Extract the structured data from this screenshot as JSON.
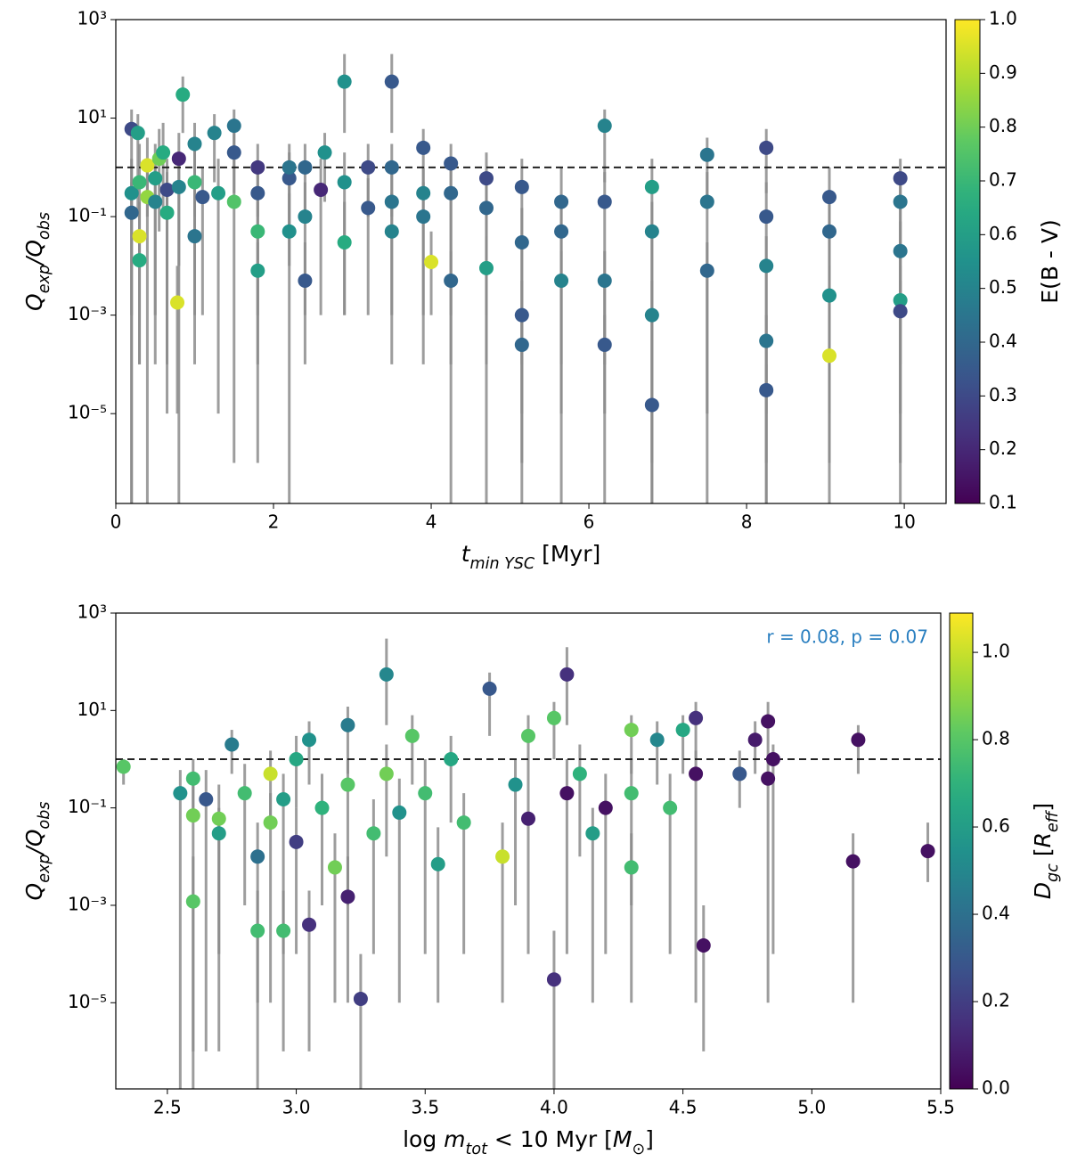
{
  "chart_data": [
    {
      "type": "scatter",
      "log_y": true,
      "colormap": "viridis",
      "hline": 1,
      "errorbar_color": "#8c8c8c",
      "xlabel": [
        {
          "text": "t",
          "italic": true
        },
        {
          "text": "min YSC",
          "sub": true,
          "italic": true
        },
        {
          "text": " [Myr]"
        }
      ],
      "ylabel": [
        {
          "text": "Q",
          "italic": true
        },
        {
          "text": "exp",
          "sub": true,
          "italic": true
        },
        {
          "text": "/",
          "italic": true
        },
        {
          "text": "Q",
          "italic": true
        },
        {
          "text": "obs",
          "sub": true,
          "italic": true
        }
      ],
      "xlim": [
        0,
        10.53
      ],
      "ylim": [
        1.5e-07,
        1000
      ],
      "xticks": [
        0,
        2,
        4,
        6,
        8,
        10
      ],
      "yticks": [
        {
          "value": 1000,
          "label": "10³"
        },
        {
          "value": 10,
          "label": "10¹"
        },
        {
          "value": 0.1,
          "label": "10⁻¹"
        },
        {
          "value": 0.001,
          "label": "10⁻³"
        },
        {
          "value": 1e-05,
          "label": "10⁻⁵"
        }
      ],
      "colorbar": {
        "label": [
          {
            "text": "E(B - V)"
          }
        ],
        "lim": [
          0.1,
          1.0
        ],
        "ticks": [
          0.1,
          0.2,
          0.3,
          0.4,
          0.5,
          0.6,
          0.7,
          0.8,
          0.9,
          {
            "value": 1,
            "label": "1.0"
          }
        ]
      },
      "x": [
        0.2,
        0.2,
        0.2,
        0.3,
        0.3,
        0.3,
        0.28,
        0.4,
        0.4,
        0.5,
        0.55,
        0.5,
        0.6,
        0.65,
        0.65,
        0.78,
        0.8,
        0.85,
        0.8,
        1.0,
        1.0,
        1.0,
        1.1,
        1.25,
        1.3,
        1.5,
        1.5,
        1.5,
        1.8,
        1.8,
        1.8,
        1.8,
        2.2,
        2.2,
        2.2,
        2.4,
        2.4,
        2.4,
        2.65,
        2.6,
        2.9,
        2.9,
        2.9,
        3.2,
        3.2,
        3.5,
        3.5,
        3.5,
        3.5,
        3.9,
        4.0,
        3.9,
        3.9,
        4.25,
        4.25,
        4.25,
        4.7,
        4.7,
        4.7,
        5.15,
        5.15,
        5.15,
        5.15,
        5.65,
        5.65,
        5.65,
        6.2,
        6.2,
        6.2,
        6.2,
        6.8,
        6.8,
        6.8,
        6.8,
        7.5,
        7.5,
        7.5,
        8.25,
        8.25,
        8.25,
        8.25,
        8.25,
        9.05,
        9.05,
        9.05,
        9.05,
        9.95,
        9.95,
        9.95,
        9.95,
        9.95
      ],
      "y": [
        6,
        0.3,
        0.12,
        0.04,
        0.013,
        0.5,
        5,
        1.1,
        0.25,
        0.6,
        1.5,
        0.2,
        2,
        0.35,
        0.12,
        0.0018,
        1.5,
        30,
        0.4,
        0.5,
        3,
        0.04,
        0.25,
        5,
        0.3,
        7,
        2,
        0.2,
        1,
        0.008,
        0.05,
        0.3,
        0.05,
        0.6,
        1,
        1,
        0.005,
        0.1,
        2,
        0.35,
        55,
        0.03,
        0.5,
        1,
        0.15,
        55,
        1,
        0.2,
        0.05,
        2.5,
        0.012,
        0.3,
        0.1,
        1.2,
        0.005,
        0.3,
        0.6,
        0.009,
        0.15,
        0.4,
        0.001,
        0.00025,
        0.03,
        0.2,
        0.005,
        0.05,
        7,
        0.00025,
        0.2,
        0.005,
        0.4,
        0.001,
        1.5e-05,
        0.05,
        1.8,
        0.2,
        0.008,
        2.5,
        0.1,
        3e-05,
        0.0003,
        0.01,
        0.25,
        0.00015,
        0.0025,
        0.05,
        0.6,
        0.002,
        0.0012,
        0.02,
        0.2
      ],
      "c": [
        0.3,
        0.55,
        0.4,
        0.95,
        0.65,
        0.7,
        0.6,
        0.95,
        0.85,
        0.6,
        0.8,
        0.5,
        0.65,
        0.3,
        0.65,
        0.95,
        0.2,
        0.65,
        0.5,
        0.7,
        0.5,
        0.45,
        0.35,
        0.5,
        0.6,
        0.45,
        0.35,
        0.75,
        0.25,
        0.6,
        0.7,
        0.35,
        0.55,
        0.35,
        0.45,
        0.4,
        0.35,
        0.5,
        0.55,
        0.2,
        0.55,
        0.65,
        0.55,
        0.3,
        0.35,
        0.35,
        0.4,
        0.45,
        0.5,
        0.35,
        0.95,
        0.5,
        0.45,
        0.35,
        0.4,
        0.4,
        0.3,
        0.6,
        0.4,
        0.35,
        0.35,
        0.4,
        0.4,
        0.4,
        0.5,
        0.4,
        0.5,
        0.35,
        0.35,
        0.45,
        0.6,
        0.5,
        0.35,
        0.5,
        0.45,
        0.45,
        0.4,
        0.3,
        0.35,
        0.35,
        0.45,
        0.5,
        0.35,
        0.95,
        0.55,
        0.4,
        0.3,
        0.6,
        0.3,
        0.45,
        0.45
      ],
      "yerr_low": [
        1e-07,
        0.001,
        1e-07,
        0.0001,
        0.0001,
        0.01,
        0.1,
        0.1,
        1e-07,
        0.001,
        0.05,
        0.0001,
        0.1,
        1e-05,
        0.0001,
        1e-05,
        0.01,
        5,
        1e-07,
        0.0001,
        0.1,
        0.001,
        0.001,
        0.5,
        1e-05,
        1,
        0.3,
        1e-06,
        0.1,
        1e-06,
        0.001,
        0.0001,
        1e-07,
        0.01,
        0.05,
        0.1,
        0.0001,
        0.001,
        0.2,
        0.001,
        5,
        0.001,
        0.001,
        0.1,
        0.001,
        5,
        0.1,
        0.0001,
        0.001,
        0.3,
        0.001,
        0.0001,
        0.001,
        1e-07,
        0.0001,
        0.001,
        1e-07,
        0.0001,
        0.001,
        1e-07,
        1e-05,
        1e-06,
        0.0001,
        1e-07,
        1e-05,
        0.0001,
        0.5,
        1e-07,
        0.0001,
        1e-05,
        1e-07,
        1e-06,
        1e-07,
        0.0001,
        0.2,
        1e-07,
        1e-05,
        0.3,
        1e-07,
        1e-07,
        1e-06,
        1e-05,
        1e-07,
        1e-06,
        1e-05,
        0.0001,
        1e-07,
        1e-05,
        1e-06,
        0.0001,
        0.001
      ],
      "yerr_high": [
        15,
        1.5,
        0.5,
        0.2,
        0.05,
        3,
        12,
        4,
        1,
        3,
        6,
        1,
        8,
        1.5,
        0.8,
        0.01,
        5,
        70,
        2,
        3,
        8,
        0.2,
        1,
        12,
        1.5,
        15,
        5,
        1,
        3,
        0.03,
        0.2,
        1,
        0.3,
        2,
        3,
        3,
        0.03,
        0.5,
        5,
        1.5,
        200,
        0.2,
        2,
        3,
        0.6,
        200,
        3,
        1,
        0.3,
        6,
        0.05,
        1,
        0.5,
        3,
        0.02,
        1,
        2,
        0.04,
        0.6,
        1.5,
        0.005,
        0.001,
        0.15,
        1,
        0.02,
        0.2,
        15,
        0.001,
        0.8,
        0.02,
        1.5,
        0.005,
        0.0001,
        0.2,
        4,
        0.8,
        0.03,
        6,
        0.5,
        0.0001,
        0.001,
        0.04,
        1,
        0.001,
        0.01,
        0.2,
        1.5,
        0.01,
        0.005,
        0.08,
        0.6
      ]
    },
    {
      "type": "scatter",
      "log_y": true,
      "colormap": "viridis",
      "hline": 1,
      "errorbar_color": "#8c8c8c",
      "annotation": "r = 0.08, p = 0.07",
      "annotation_color": "#2a7fc0",
      "annotation_corner": "upper right",
      "xlabel": [
        {
          "text": "log "
        },
        {
          "text": "m",
          "italic": true
        },
        {
          "text": "tot",
          "sub": true,
          "italic": true
        },
        {
          "text": " < 10 Myr ["
        },
        {
          "text": "M",
          "italic": true
        },
        {
          "text": "⊙",
          "sub": true
        },
        {
          "text": "]"
        }
      ],
      "ylabel": [
        {
          "text": "Q",
          "italic": true
        },
        {
          "text": "exp",
          "sub": true,
          "italic": true
        },
        {
          "text": "/",
          "italic": true
        },
        {
          "text": "Q",
          "italic": true
        },
        {
          "text": "obs",
          "sub": true,
          "italic": true
        }
      ],
      "xlim": [
        2.3,
        5.5
      ],
      "ylim": [
        1.7e-07,
        1000
      ],
      "xticks": [
        2.5,
        {
          "value": 3,
          "label": "3.0"
        },
        3.5,
        {
          "value": 4,
          "label": "4.0"
        },
        4.5,
        {
          "value": 5,
          "label": "5.0"
        },
        5.5
      ],
      "yticks": [
        {
          "value": 1000,
          "label": "10³"
        },
        {
          "value": 10,
          "label": "10¹"
        },
        {
          "value": 0.1,
          "label": "10⁻¹"
        },
        {
          "value": 0.001,
          "label": "10⁻³"
        },
        {
          "value": 1e-05,
          "label": "10⁻⁵"
        }
      ],
      "colorbar": {
        "label": [
          {
            "text": "D",
            "italic": true
          },
          {
            "text": "gc",
            "sub": true,
            "italic": true
          },
          {
            "text": " ["
          },
          {
            "text": "R",
            "italic": true
          },
          {
            "text": "eff",
            "sub": true,
            "italic": true
          },
          {
            "text": "]"
          }
        ],
        "lim": [
          0,
          1.09
        ],
        "ticks": [
          {
            "value": 0,
            "label": "0.0"
          },
          0.2,
          0.4,
          0.6,
          0.8,
          {
            "value": 1,
            "label": "1.0"
          }
        ]
      },
      "x": [
        2.33,
        2.55,
        2.6,
        2.6,
        2.6,
        2.65,
        2.7,
        2.7,
        2.75,
        2.8,
        2.85,
        2.85,
        2.9,
        2.9,
        2.95,
        2.95,
        3.0,
        3.0,
        3.05,
        3.05,
        3.1,
        3.15,
        3.2,
        3.2,
        3.2,
        3.25,
        3.3,
        3.35,
        3.35,
        3.4,
        3.45,
        3.5,
        3.55,
        3.6,
        3.65,
        3.75,
        3.8,
        3.85,
        3.9,
        3.9,
        4.0,
        4.0,
        4.05,
        4.05,
        4.1,
        4.15,
        4.2,
        4.3,
        4.3,
        4.3,
        4.4,
        4.45,
        4.5,
        4.55,
        4.55,
        4.58,
        4.72,
        4.78,
        4.83,
        4.83,
        4.85,
        5.16,
        5.18,
        5.45
      ],
      "y": [
        0.7,
        0.2,
        0.4,
        0.07,
        0.0012,
        0.15,
        0.03,
        0.06,
        2,
        0.2,
        0.01,
        0.0003,
        0.5,
        0.05,
        0.15,
        0.0003,
        1,
        0.02,
        2.5,
        0.0004,
        0.1,
        0.006,
        5,
        0.3,
        0.0015,
        1.2e-05,
        0.03,
        55,
        0.5,
        0.08,
        3,
        0.2,
        0.007,
        1,
        0.05,
        28,
        0.01,
        0.3,
        3,
        0.06,
        3e-05,
        7,
        55,
        0.2,
        0.5,
        0.03,
        0.1,
        4,
        0.006,
        0.2,
        2.5,
        0.1,
        4,
        7,
        0.5,
        0.00015,
        0.5,
        2.5,
        6,
        0.4,
        1,
        0.008,
        2.5,
        0.013
      ],
      "c": [
        0.8,
        0.55,
        0.75,
        0.85,
        0.8,
        0.3,
        0.6,
        0.85,
        0.45,
        0.75,
        0.4,
        0.75,
        1.0,
        0.85,
        0.6,
        0.75,
        0.65,
        0.2,
        0.55,
        0.15,
        0.7,
        0.85,
        0.45,
        0.8,
        0.1,
        0.2,
        0.75,
        0.5,
        0.85,
        0.55,
        0.8,
        0.75,
        0.6,
        0.65,
        0.75,
        0.3,
        1.0,
        0.55,
        0.8,
        0.1,
        0.15,
        0.8,
        0.15,
        0.05,
        0.7,
        0.6,
        0.05,
        0.85,
        0.75,
        0.75,
        0.5,
        0.75,
        0.65,
        0.15,
        0.05,
        0.05,
        0.3,
        0.08,
        0.05,
        0.05,
        0.05,
        0.05,
        0.05,
        0.05
      ],
      "yerr_low": [
        0.3,
        1e-07,
        0.05,
        1e-06,
        1e-07,
        1e-06,
        0.0001,
        1e-06,
        0.5,
        0.001,
        1e-05,
        1e-07,
        0.05,
        1e-05,
        0.0001,
        1e-06,
        0.1,
        0.0001,
        0.3,
        1e-06,
        0.001,
        1e-05,
        0.5,
        0.001,
        1e-05,
        1e-07,
        0.0001,
        5,
        0.01,
        1e-05,
        0.3,
        0.0001,
        1e-05,
        0.05,
        0.0001,
        3,
        1e-05,
        0.001,
        0.3,
        0.0001,
        1e-07,
        1,
        5,
        0.0001,
        0.01,
        1e-05,
        0.0001,
        0.5,
        1e-05,
        0.001,
        0.3,
        0.0001,
        0.5,
        1,
        1e-05,
        1e-06,
        0.1,
        0.5,
        1,
        1e-05,
        0.0001,
        1e-05,
        0.5,
        0.003
      ],
      "yerr_high": [
        1,
        0.6,
        1,
        0.3,
        0.01,
        0.6,
        0.1,
        0.3,
        4,
        0.8,
        0.05,
        0.002,
        1.5,
        0.2,
        0.5,
        0.002,
        3,
        0.1,
        6,
        0.002,
        0.5,
        0.03,
        12,
        1,
        0.01,
        0.0001,
        0.15,
        300,
        2,
        0.4,
        8,
        1,
        0.04,
        3,
        0.2,
        60,
        0.05,
        1,
        8,
        0.3,
        0.0003,
        15,
        200,
        1,
        2,
        0.1,
        0.5,
        8,
        0.03,
        1,
        6,
        0.5,
        8,
        15,
        1.5,
        0.001,
        1.5,
        6,
        15,
        1,
        2,
        0.03,
        5,
        0.05
      ]
    }
  ]
}
